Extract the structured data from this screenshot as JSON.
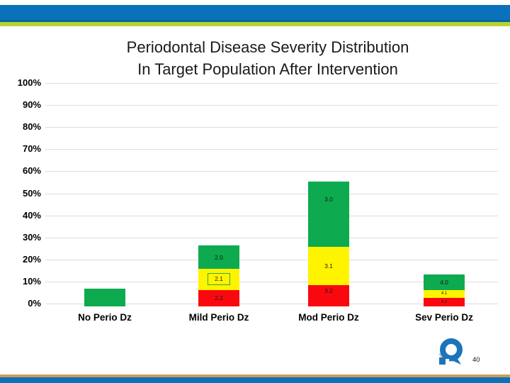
{
  "slide": {
    "title_line1": "Periodontal Disease Severity Distribution",
    "title_line2": "In Target Population After Intervention",
    "page_number": "40"
  },
  "colors": {
    "green": "#0DAA4F",
    "yellow": "#FFF400",
    "red": "#F9090F",
    "band_blue": "#0A72BC",
    "band_blue_dark": "#0A62A0",
    "band_lime": "#B5D334",
    "band_gold": "#CE9C51",
    "gridline": "#DCDCDC",
    "label_box_border": "#2EA84D",
    "logo_blue": "#1B75BB",
    "logo_gray": "#C8CCD0"
  },
  "chart_data": {
    "type": "bar",
    "subtype": "stacked",
    "title": "Periodontal Disease Severity Distribution In Target Population After Intervention",
    "categories": [
      "No Perio Dz",
      "Mild Perio Dz",
      "Mod Perio Dz",
      "Sev Perio Dz"
    ],
    "xlabel": "",
    "ylabel": "",
    "ylim": [
      0,
      100
    ],
    "y_tick_labels": [
      "0%",
      "10%",
      "20%",
      "30%",
      "40%",
      "50%",
      "60%",
      "70%",
      "80%",
      "90%",
      "100%"
    ],
    "grid": true,
    "legend": false,
    "stack_order_bottom_to_top": [
      "red",
      "yellow",
      "green"
    ],
    "bars": [
      {
        "category": "No Perio Dz",
        "segments": [
          {
            "color": "green",
            "value": 8,
            "label": ""
          }
        ]
      },
      {
        "category": "Mild Perio Dz",
        "segments": [
          {
            "color": "red",
            "value": 7.5,
            "label": "2.2"
          },
          {
            "color": "yellow",
            "value": 9.5,
            "label": "2.1",
            "boxed": true
          },
          {
            "color": "green",
            "value": 10.5,
            "label": "2.0"
          }
        ]
      },
      {
        "category": "Mod Perio Dz",
        "segments": [
          {
            "color": "red",
            "value": 9.5,
            "label": "3.2",
            "label_pos": "upper"
          },
          {
            "color": "yellow",
            "value": 17.5,
            "label": "3.1"
          },
          {
            "color": "green",
            "value": 29.5,
            "label": "3.0",
            "label_pos": "upper"
          }
        ]
      },
      {
        "category": "Sev Perio Dz",
        "segments": [
          {
            "color": "red",
            "value": 4,
            "label": "4.2"
          },
          {
            "color": "yellow",
            "value": 3.5,
            "label": "4.1"
          },
          {
            "color": "green",
            "value": 7,
            "label": "4.0"
          }
        ]
      }
    ]
  }
}
